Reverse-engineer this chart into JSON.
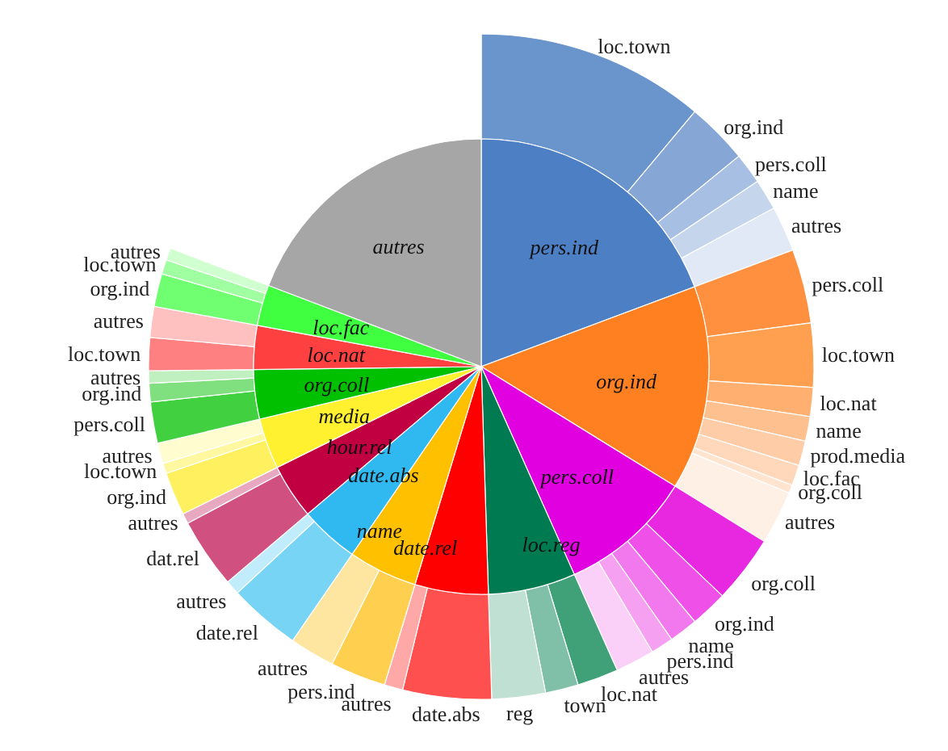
{
  "chart_data": [
    {
      "type": "pie",
      "categories": [
        "pers.ind",
        "org.ind",
        "pers.coll",
        "loc.reg",
        "date.rel",
        "name",
        "date.abs",
        "hour.rel",
        "media",
        "org.coll",
        "loc.nat",
        "loc.fac",
        "autres"
      ],
      "values": [
        19.3,
        14.5,
        9.5,
        6.2,
        5.2,
        4.9,
        4.2,
        3.9,
        3.6,
        3.5,
        3.1,
        2.9,
        19.2
      ],
      "colors": [
        "#4d7fc4",
        "#ff8020",
        "#e000e0",
        "#007a50",
        "#ff0000",
        "#ffc000",
        "#30b8f0",
        "#c00040",
        "#fff030",
        "#00c000",
        "#ff4040",
        "#40ff40",
        "#a6a6a6"
      ]
    },
    {
      "type": "donut",
      "categories": [
        "loc.town",
        "org.ind",
        "pers.coll",
        "name",
        "autres",
        "pers.coll",
        "loc.town",
        "loc.nat",
        "name",
        "prod.media",
        "loc.fac",
        "org.coll",
        "autres",
        "org.coll",
        "org.ind",
        "name",
        "pers.ind",
        "autres",
        "loc.nat",
        "town",
        "reg",
        "date.abs",
        "autres",
        "pers.ind",
        "autres",
        "date.rel",
        "autres",
        "dat.rel",
        "autres",
        "org.ind",
        "loc.town",
        "autres",
        "pers.coll",
        "org.ind",
        "autres",
        "loc.town",
        "autres",
        "org.ind",
        "loc.town",
        "autres",
        null
      ],
      "values": [
        11.1,
        3.0,
        1.5,
        1.5,
        2.2,
        3.6,
        3.1,
        1.4,
        1.2,
        1.2,
        1.0,
        0.4,
        2.6,
        3.3,
        1.8,
        1.4,
        1.1,
        1.9,
        2.0,
        1.6,
        2.6,
        4.3,
        0.9,
        2.7,
        2.2,
        3.5,
        0.7,
        3.4,
        0.5,
        2.1,
        0.5,
        1.0,
        2.0,
        0.9,
        0.6,
        1.6,
        1.5,
        1.6,
        0.7,
        0.6,
        19.2
      ],
      "colors": [
        "#6a94cc",
        "#86a6d6",
        "#a7bfe3",
        "#c5d5ec",
        "#e0e9f5",
        "#ff9040",
        "#ffa050",
        "#ffb070",
        "#ffc090",
        "#ffcca8",
        "#ffd8bc",
        "#ffe4d0",
        "#fff0e6",
        "#e828e0",
        "#ee50e8",
        "#f278ee",
        "#f6a0f2",
        "#fad0f8",
        "#40a078",
        "#80c0a8",
        "#c0e0d4",
        "#ff5050",
        "#ffa8a8",
        "#ffd050",
        "#ffe6a0",
        "#78d4f4",
        "#c0ecfc",
        "#d05080",
        "#e8a8c0",
        "#fff060",
        "#fff8a0",
        "#fffcd0",
        "#40d040",
        "#80e080",
        "#c0f0c0",
        "#ff8080",
        "#ffc0c0",
        "#70ff70",
        "#a0ffa0",
        "#d0ffd0",
        "#ffffff"
      ]
    }
  ]
}
